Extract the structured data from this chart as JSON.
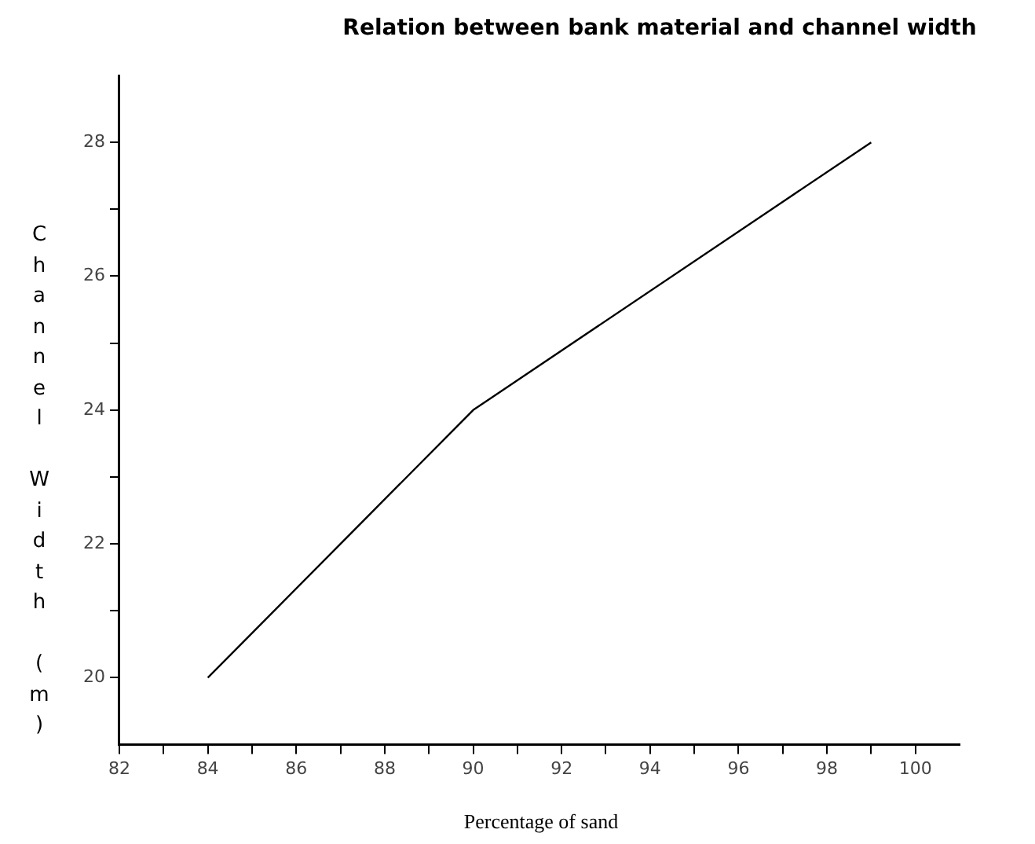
{
  "chart_data": {
    "type": "line",
    "title": "Relation between bank material and channel width",
    "xlabel": "Percentage of sand",
    "ylabel": "Channel Width (m)",
    "x": [
      84,
      90,
      99
    ],
    "series": [
      {
        "color": "#000000",
        "values": [
          20,
          24,
          28
        ]
      }
    ],
    "xlim": [
      82,
      101
    ],
    "ylim": [
      19,
      29
    ],
    "xticks": [
      82,
      {
        "value": 83,
        "label": null
      },
      84,
      {
        "value": 85,
        "label": null
      },
      86,
      {
        "value": 87,
        "label": null
      },
      88,
      {
        "value": 89,
        "label": null
      },
      90,
      {
        "value": 91,
        "label": null
      },
      92,
      {
        "value": 93,
        "label": null
      },
      94,
      {
        "value": 95,
        "label": null
      },
      96,
      {
        "value": 97,
        "label": null
      },
      98,
      {
        "value": 99,
        "label": null
      },
      100
    ],
    "yticks": [
      20,
      {
        "value": 21,
        "label": null
      },
      22,
      {
        "value": 23,
        "label": null
      },
      24,
      {
        "value": 25,
        "label": null
      },
      26,
      {
        "value": 27,
        "label": null
      },
      28
    ],
    "grid": false,
    "legend": false,
    "marker": "none",
    "line_style": "solid"
  }
}
